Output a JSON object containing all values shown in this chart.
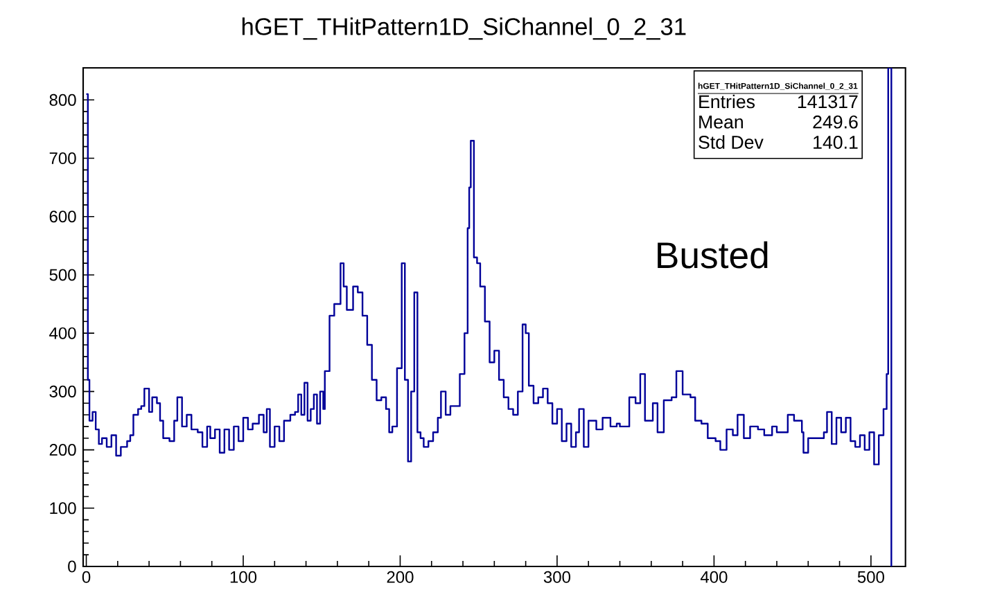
{
  "chart_data": {
    "type": "step",
    "title": "hGET_THitPattern1D_SiChannel_0_2_31",
    "annotations": [
      "hGET_THitPattern1D_SiChannel_0_2_31",
      "Entries",
      "141317",
      "Mean",
      "249.6",
      "Std Dev",
      "140.1",
      "Busted"
    ],
    "color": "#000099",
    "xlim": [
      -2,
      522
    ],
    "ylim": [
      0,
      855
    ],
    "xticks": [
      0,
      100,
      200,
      300,
      400,
      500
    ],
    "yticks": [
      0,
      100,
      200,
      300,
      400,
      500,
      600,
      700,
      800
    ],
    "x": [
      0,
      1,
      2,
      4,
      6,
      8,
      10,
      13,
      16,
      19,
      22,
      26,
      28,
      30,
      33,
      35,
      37,
      40,
      42,
      45,
      47,
      49,
      53,
      56,
      58,
      61,
      64,
      67,
      71,
      74,
      77,
      79,
      82,
      85,
      88,
      91,
      94,
      97,
      100,
      103,
      106,
      110,
      113,
      115,
      117,
      120,
      123,
      126,
      130,
      133,
      135,
      137,
      139,
      141,
      143,
      145,
      147,
      149,
      151,
      152,
      155,
      158,
      162,
      164,
      166,
      170,
      173,
      176,
      179,
      182,
      185,
      188,
      191,
      193,
      195,
      198,
      201,
      203,
      205,
      207,
      209,
      211,
      213,
      215,
      218,
      221,
      224,
      226,
      229,
      232,
      235,
      238,
      241,
      243,
      244,
      245,
      247,
      249,
      251,
      254,
      257,
      260,
      263,
      266,
      269,
      272,
      275,
      278,
      280,
      282,
      285,
      288,
      291,
      294,
      297,
      300,
      303,
      306,
      309,
      312,
      314,
      317,
      320,
      325,
      329,
      334,
      338,
      340,
      346,
      350,
      353,
      356,
      361,
      364,
      368,
      373,
      376,
      380,
      385,
      388,
      392,
      396,
      401,
      404,
      408,
      412,
      415,
      419,
      423,
      428,
      432,
      437,
      440,
      447,
      451,
      456,
      457,
      460,
      465,
      470,
      472,
      475,
      478,
      481,
      484,
      487,
      490,
      493,
      496,
      499,
      502,
      505,
      508,
      510,
      511,
      513
    ],
    "values": [
      810,
      320,
      250,
      265,
      235,
      210,
      220,
      205,
      225,
      190,
      205,
      215,
      225,
      260,
      270,
      275,
      305,
      265,
      290,
      280,
      250,
      220,
      215,
      250,
      290,
      240,
      260,
      235,
      230,
      205,
      240,
      220,
      235,
      195,
      235,
      200,
      240,
      215,
      255,
      235,
      245,
      260,
      230,
      270,
      205,
      240,
      215,
      250,
      260,
      265,
      295,
      260,
      315,
      250,
      270,
      295,
      245,
      300,
      270,
      335,
      430,
      450,
      520,
      480,
      440,
      480,
      470,
      430,
      380,
      320,
      285,
      290,
      270,
      230,
      240,
      340,
      520,
      320,
      180,
      300,
      470,
      230,
      220,
      205,
      215,
      230,
      255,
      300,
      260,
      275,
      275,
      330,
      400,
      580,
      650,
      730,
      530,
      520,
      480,
      420,
      350,
      370,
      320,
      290,
      270,
      260,
      300,
      415,
      400,
      310,
      280,
      290,
      305,
      280,
      245,
      270,
      215,
      245,
      205,
      230,
      270,
      205,
      250,
      235,
      255,
      240,
      245,
      240,
      290,
      280,
      330,
      250,
      280,
      230,
      285,
      290,
      335,
      295,
      290,
      250,
      245,
      220,
      215,
      200,
      235,
      225,
      260,
      220,
      240,
      235,
      225,
      240,
      230,
      260,
      250,
      230,
      195,
      220,
      220,
      230,
      265,
      210,
      255,
      230,
      255,
      215,
      205,
      225,
      200,
      230,
      175,
      225,
      270,
      330,
      855,
      0
    ]
  }
}
